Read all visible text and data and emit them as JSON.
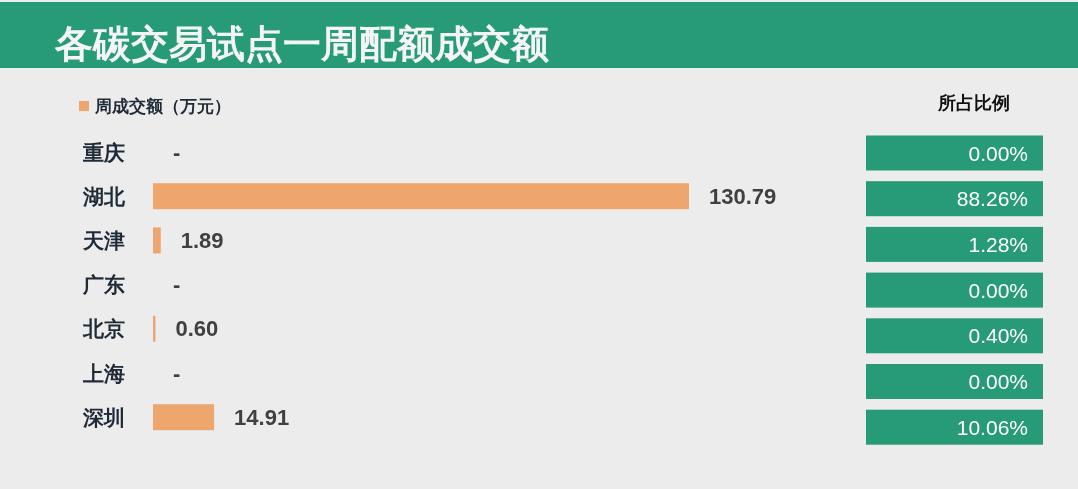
{
  "chart_data": [
    {
      "type": "bar",
      "title": "各碳交易试点一周配额成交额",
      "orientation": "horizontal",
      "legend": "top left",
      "categories": [
        "重庆",
        "湖北",
        "天津",
        "广东",
        "北京",
        "上海",
        "深圳"
      ],
      "series": [
        {
          "name": "周成交额（万元）",
          "color": "#eda66d",
          "values": [
            0,
            130.79,
            1.89,
            0,
            0.6,
            0,
            14.91
          ],
          "value_labels": [
            "-",
            "130.79",
            "1.89",
            "-",
            "0.60",
            "-",
            "14.91"
          ]
        }
      ]
    },
    {
      "type": "other",
      "title": "所占比例",
      "color": "#279a77",
      "annotations": [
        "0.00%",
        "88.26%",
        "1.28%",
        "0.00%",
        "0.40%",
        "0.00%",
        "10.06%"
      ]
    }
  ]
}
